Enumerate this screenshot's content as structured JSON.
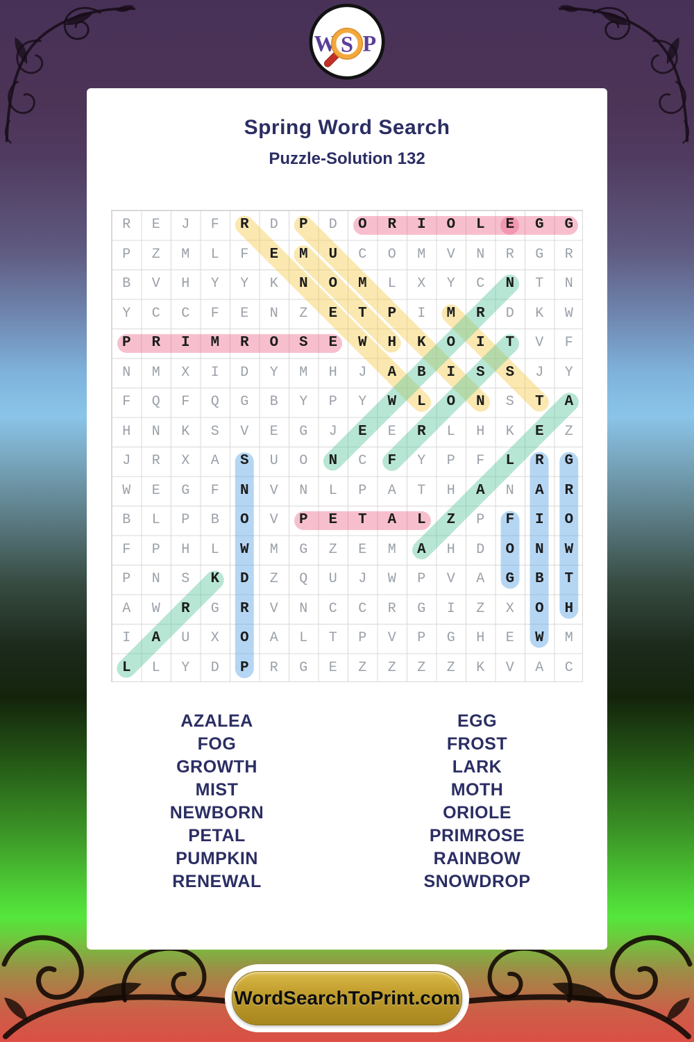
{
  "logo": {
    "letter_w": "W",
    "letter_s": "S",
    "letter_p": "P"
  },
  "header": {
    "title": "Spring Word Search",
    "subtitle": "Puzzle-Solution 132"
  },
  "puzzle": {
    "rows": 16,
    "cols": 16,
    "grid": [
      "REJFRDPDORIOLEGG",
      "PZMLFEMUCOMVNRGR",
      "BVHYYKNOMLXYCNTN",
      "YCCFENZETPIMRDKW",
      "PRIMROSEWHKOITVF",
      "NMXIDYMHJABISSJY",
      "FQFQGBYPYWLONSTA",
      "HNKSVEGJEERLHKEZ",
      "JRXASUONCFYPFLRG",
      "WEGFNVNLPATHANAR",
      "BLPBOVPETALZPFIO",
      "FPHLWMGZEMAHDONW",
      "PNSKDZQUJWPVAGBT",
      "AWRGRVNCCRGIZXOH",
      "IAUXOALTPVPGHEWM",
      "LLYDPRGEZZZZKVAC"
    ],
    "solutions": [
      {
        "word": "ORIOLE",
        "row": 1,
        "col": 9,
        "dr": 0,
        "dc": 1,
        "color": "pink"
      },
      {
        "word": "EGG",
        "row": 1,
        "col": 14,
        "dr": 0,
        "dc": 1,
        "color": "pink"
      },
      {
        "word": "PRIMROSE",
        "row": 5,
        "col": 1,
        "dr": 0,
        "dc": 1,
        "color": "pink"
      },
      {
        "word": "PETAL",
        "row": 11,
        "col": 7,
        "dr": 0,
        "dc": 1,
        "color": "pink"
      },
      {
        "word": "RENEWAL",
        "row": 1,
        "col": 5,
        "dr": 1,
        "dc": 1,
        "color": "yellow"
      },
      {
        "word": "PUMPKIN",
        "row": 1,
        "col": 7,
        "dr": 1,
        "dc": 1,
        "color": "yellow"
      },
      {
        "word": "MOTH",
        "row": 2,
        "col": 7,
        "dr": 1,
        "dc": 1,
        "color": "yellow"
      },
      {
        "word": "MIST",
        "row": 4,
        "col": 12,
        "dr": 1,
        "dc": 1,
        "color": "yellow"
      },
      {
        "word": "FROST",
        "row": 9,
        "col": 10,
        "dr": -1,
        "dc": 1,
        "color": "teal"
      },
      {
        "word": "NEWBORN",
        "row": 9,
        "col": 8,
        "dr": -1,
        "dc": 1,
        "color": "teal"
      },
      {
        "word": "AZALEA",
        "row": 12,
        "col": 11,
        "dr": -1,
        "dc": 1,
        "color": "teal"
      },
      {
        "word": "LARK",
        "row": 16,
        "col": 1,
        "dr": -1,
        "dc": 1,
        "color": "teal"
      },
      {
        "word": "SNOWDROP",
        "row": 9,
        "col": 5,
        "dr": 1,
        "dc": 0,
        "color": "blue"
      },
      {
        "word": "FOG",
        "row": 11,
        "col": 14,
        "dr": 1,
        "dc": 0,
        "color": "blue"
      },
      {
        "word": "RAINBOW",
        "row": 9,
        "col": 15,
        "dr": 1,
        "dc": 0,
        "color": "blue"
      },
      {
        "word": "GROWTH",
        "row": 9,
        "col": 16,
        "dr": 1,
        "dc": 0,
        "color": "blue"
      }
    ]
  },
  "highlight_colors": {
    "pink": "rgba(236,96,133,0.40)",
    "yellow": "rgba(243,205,80,0.45)",
    "teal": "rgba(97,199,160,0.45)",
    "blue": "rgba(100,170,230,0.48)"
  },
  "word_list": {
    "left": [
      "AZALEA",
      "FOG",
      "GROWTH",
      "MIST",
      "NEWBORN",
      "PETAL",
      "PUMPKIN",
      "RENEWAL"
    ],
    "right": [
      "EGG",
      "FROST",
      "LARK",
      "MOTH",
      "ORIOLE",
      "PRIMROSE",
      "RAINBOW",
      "SNOWDROP"
    ]
  },
  "footer": {
    "site_button": "WordSearchToPrint.com"
  },
  "theme": {
    "navy": "#2b2e63",
    "gold": "#b5922a",
    "letter_gray": "#9aa0a8",
    "letter_black": "#1c1c1c",
    "grid_line": "#d8d8d8",
    "logo_purple": "#5b3e96",
    "logo_ring_orange": "#f2a83c",
    "logo_handle_red": "#c33027"
  }
}
